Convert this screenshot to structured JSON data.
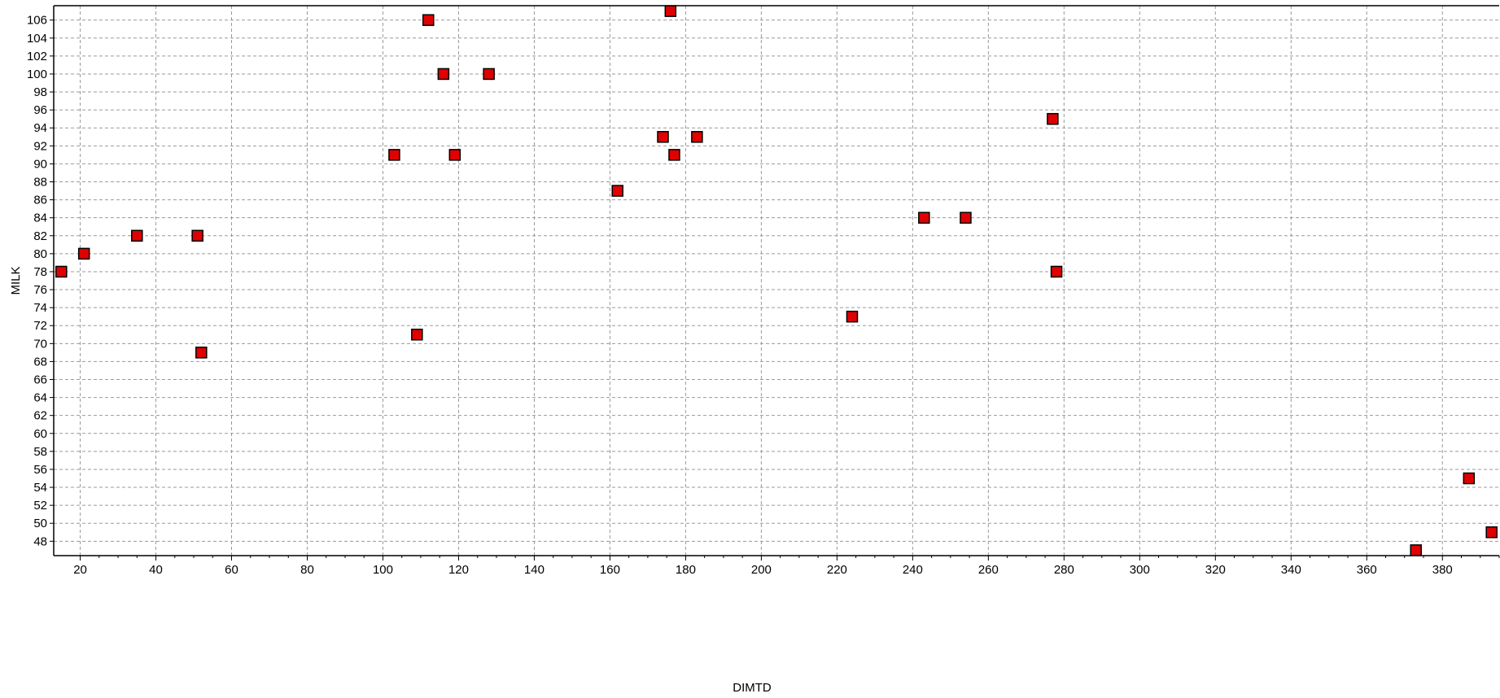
{
  "chart_data": {
    "type": "scatter",
    "xlabel": "DIMTD",
    "ylabel": "MILK",
    "xlim": [
      13,
      395
    ],
    "ylim": [
      46.4,
      107.6
    ],
    "x_ticks": [
      20,
      40,
      60,
      80,
      100,
      120,
      140,
      160,
      180,
      200,
      220,
      240,
      260,
      280,
      300,
      320,
      340,
      360,
      380
    ],
    "y_ticks": [
      48,
      50,
      52,
      54,
      56,
      58,
      60,
      62,
      64,
      66,
      68,
      70,
      72,
      74,
      76,
      78,
      80,
      82,
      84,
      86,
      88,
      90,
      92,
      94,
      96,
      98,
      100,
      102,
      104,
      106
    ],
    "grid": true,
    "marker_color": "#e00000",
    "points": [
      {
        "x": 15,
        "y": 78
      },
      {
        "x": 21,
        "y": 80
      },
      {
        "x": 35,
        "y": 82
      },
      {
        "x": 51,
        "y": 82
      },
      {
        "x": 52,
        "y": 69
      },
      {
        "x": 103,
        "y": 91
      },
      {
        "x": 109,
        "y": 71
      },
      {
        "x": 112,
        "y": 106
      },
      {
        "x": 116,
        "y": 100
      },
      {
        "x": 119,
        "y": 91
      },
      {
        "x": 128,
        "y": 100
      },
      {
        "x": 162,
        "y": 87
      },
      {
        "x": 174,
        "y": 93
      },
      {
        "x": 176,
        "y": 107
      },
      {
        "x": 177,
        "y": 91
      },
      {
        "x": 183,
        "y": 93
      },
      {
        "x": 224,
        "y": 73
      },
      {
        "x": 243,
        "y": 84
      },
      {
        "x": 254,
        "y": 84
      },
      {
        "x": 277,
        "y": 95
      },
      {
        "x": 278,
        "y": 78
      },
      {
        "x": 373,
        "y": 47
      },
      {
        "x": 387,
        "y": 55
      },
      {
        "x": 393,
        "y": 49
      }
    ]
  }
}
